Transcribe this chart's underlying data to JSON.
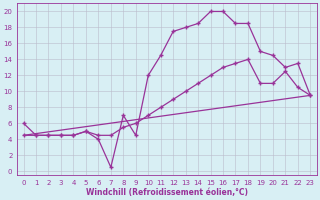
{
  "line1_x": [
    0,
    1,
    2,
    3,
    4,
    5,
    6,
    7,
    8,
    9,
    10,
    11,
    12,
    13,
    14,
    15,
    16,
    17,
    18,
    19,
    20,
    21,
    22,
    23
  ],
  "line1_y": [
    6.0,
    4.5,
    4.5,
    4.5,
    4.5,
    5.0,
    4.0,
    0.5,
    7.0,
    4.5,
    12.0,
    14.5,
    17.5,
    18.0,
    18.5,
    20.0,
    20.0,
    18.5,
    18.5,
    15.0,
    14.5,
    13.0,
    13.5,
    9.5
  ],
  "line2_x": [
    0,
    23
  ],
  "line2_y": [
    4.5,
    9.5
  ],
  "line3_x": [
    0,
    1,
    2,
    3,
    4,
    5,
    6,
    7,
    8,
    9,
    10,
    11,
    12,
    13,
    14,
    15,
    16,
    17,
    18,
    19,
    20,
    21,
    22,
    23
  ],
  "line3_y": [
    4.5,
    4.5,
    4.5,
    4.5,
    4.5,
    5.0,
    4.5,
    4.5,
    5.5,
    6.0,
    7.0,
    8.0,
    9.0,
    10.0,
    11.0,
    12.0,
    13.0,
    13.5,
    14.0,
    11.0,
    11.0,
    12.5,
    10.5,
    9.5
  ],
  "line_color": "#993399",
  "bg_color": "#d8eff4",
  "grid_color": "#bbbbcc",
  "axis_color": "#993399",
  "xlabel": "Windchill (Refroidissement éolien,°C)",
  "xticks": [
    0,
    1,
    2,
    3,
    4,
    5,
    6,
    7,
    8,
    9,
    10,
    11,
    12,
    13,
    14,
    15,
    16,
    17,
    18,
    19,
    20,
    21,
    22,
    23
  ],
  "yticks": [
    0,
    2,
    4,
    6,
    8,
    10,
    12,
    14,
    16,
    18,
    20
  ],
  "xlim": [
    -0.5,
    23.5
  ],
  "ylim": [
    -0.5,
    21.0
  ],
  "marker": "+",
  "markersize": 3.5,
  "linewidth": 0.9,
  "markeredgewidth": 1.0,
  "fontsize_tick": 5.0,
  "fontsize_label": 5.5
}
